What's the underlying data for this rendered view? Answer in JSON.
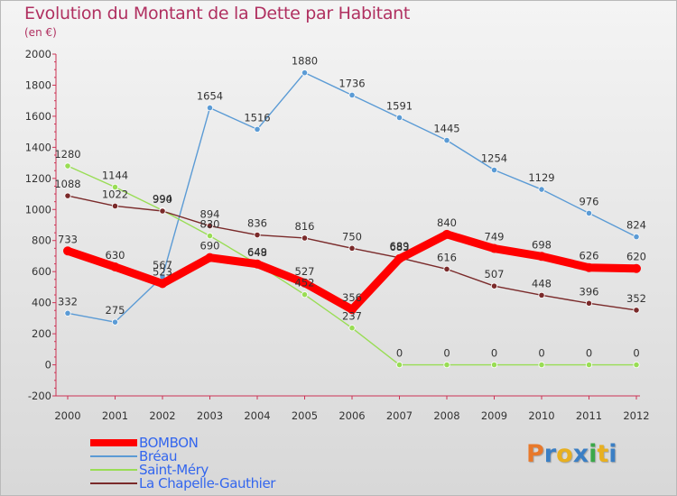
{
  "header": {
    "title": "Evolution du Montant de la Dette par Habitant",
    "subtitle": "(en €)"
  },
  "logo": {
    "letters": [
      "P",
      "r",
      "o",
      "x",
      "i",
      "t",
      "i"
    ],
    "colors": [
      "#e8792b",
      "#3b7fc4",
      "#e8b020",
      "#3b7fc4",
      "#3ba84a",
      "#e8b020",
      "#3b7fc4"
    ]
  },
  "chart_data": {
    "type": "line",
    "title": "Evolution du Montant de la Dette par Habitant",
    "subtitle": "(en €)",
    "xlabel": "",
    "ylabel": "",
    "x": [
      "2000",
      "2001",
      "2002",
      "2003",
      "2004",
      "2005",
      "2006",
      "2007",
      "2008",
      "2009",
      "2010",
      "2011",
      "2012"
    ],
    "ylim": [
      -200,
      2000
    ],
    "yticks": [
      -200,
      0,
      200,
      400,
      600,
      800,
      1000,
      1200,
      1400,
      1600,
      1800,
      2000
    ],
    "grid": false,
    "legend_position": "bottom-left",
    "series": [
      {
        "name": "BOMBON",
        "color": "#ff0000",
        "emphasis": true,
        "values": [
          733,
          630,
          523,
          690,
          649,
          527,
          356,
          683,
          840,
          749,
          698,
          626,
          620
        ],
        "labels": [
          "733",
          "630",
          "523",
          "690",
          "649",
          "527",
          "356",
          "683",
          "840",
          "749",
          "698",
          "626",
          "620"
        ]
      },
      {
        "name": "Bréau",
        "color": "#5b9bd5",
        "emphasis": false,
        "values": [
          332,
          275,
          567,
          1654,
          1516,
          1880,
          1736,
          1591,
          1445,
          1254,
          1129,
          976,
          824
        ],
        "labels": [
          "332",
          "275",
          "567",
          "1654",
          "1516",
          "1880",
          "1736",
          "1591",
          "1445",
          "1254",
          "1129",
          "976",
          "824"
        ]
      },
      {
        "name": "Saint-Méry",
        "color": "#99dd55",
        "emphasis": false,
        "values": [
          1280,
          1144,
          994,
          830,
          648,
          452,
          237,
          0,
          0,
          0,
          0,
          0,
          0
        ],
        "labels": [
          "1280",
          "1144",
          "994",
          "830",
          "648",
          "452",
          "237",
          "0",
          "0",
          "0",
          "0",
          "0",
          "0"
        ]
      },
      {
        "name": "La Chapelle-Gauthier",
        "color": "#7a2a2a",
        "emphasis": false,
        "values": [
          1088,
          1022,
          990,
          894,
          836,
          816,
          750,
          689,
          616,
          507,
          448,
          396,
          352
        ],
        "labels": [
          "1088",
          "1022",
          "990",
          "894",
          "836",
          "816",
          "750",
          "689",
          "616",
          "507",
          "448",
          "396",
          "352"
        ]
      }
    ]
  }
}
